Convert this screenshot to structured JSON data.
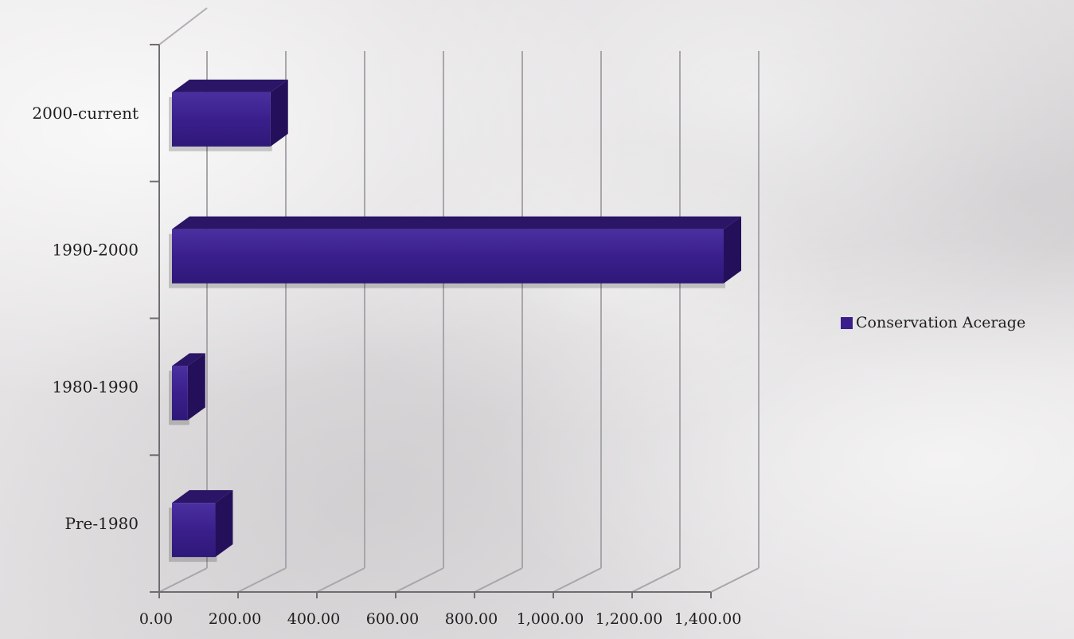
{
  "chart_data": {
    "type": "bar",
    "orientation": "horizontal",
    "three_d": true,
    "categories": [
      "Pre-1980",
      "1980-1990",
      "1990-2000",
      "2000-current"
    ],
    "series": [
      {
        "name": "Conservation Acerage",
        "values": [
          110,
          40,
          1400,
          250
        ],
        "color": "#3a1f8c"
      }
    ],
    "x_ticks": [
      "0.00",
      "200.00",
      "400.00",
      "600.00",
      "800.00",
      "1,000.00",
      "1,200.00",
      "1,400.00"
    ],
    "xlim": [
      0,
      1400
    ],
    "grid": true,
    "legend_position": "right"
  }
}
